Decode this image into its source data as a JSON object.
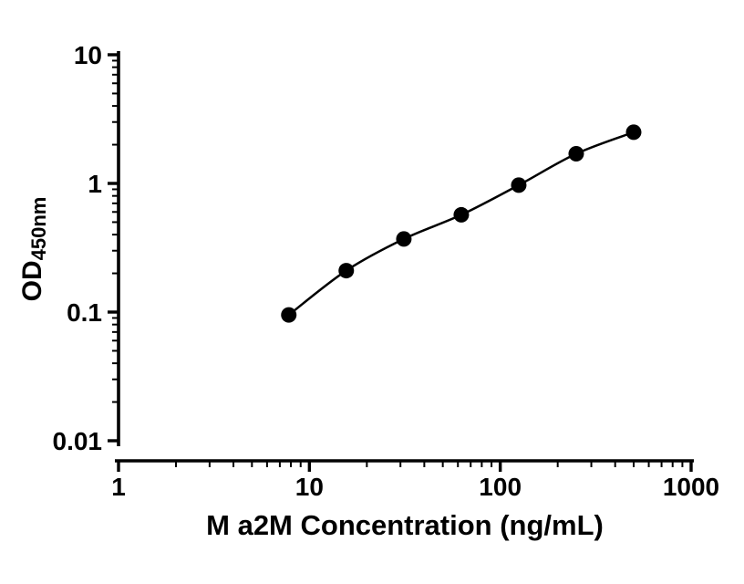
{
  "chart_data": {
    "type": "scatter",
    "title": "",
    "xlabel": "M a2M Concentration (ng/mL)",
    "ylabel_main": "OD",
    "ylabel_sub": "450nm",
    "x_scale": "log",
    "y_scale": "log",
    "xlim": [
      1,
      1000
    ],
    "ylim": [
      0.01,
      10
    ],
    "x_ticks": [
      1,
      10,
      100,
      1000
    ],
    "y_ticks": [
      0.01,
      0.1,
      1,
      10
    ],
    "x_tick_labels": [
      "1",
      "10",
      "100",
      "1000"
    ],
    "y_tick_labels": [
      "0.01",
      "0.1",
      "1",
      "10"
    ],
    "minor_ticks": true,
    "grid": false,
    "legend": "none",
    "line_color": "#000000",
    "point_color": "#000000",
    "points": [
      {
        "x": 7.8,
        "y": 0.095
      },
      {
        "x": 15.6,
        "y": 0.21
      },
      {
        "x": 31.25,
        "y": 0.37
      },
      {
        "x": 62.5,
        "y": 0.57
      },
      {
        "x": 125,
        "y": 0.97
      },
      {
        "x": 250,
        "y": 1.7
      },
      {
        "x": 500,
        "y": 2.5
      }
    ]
  }
}
